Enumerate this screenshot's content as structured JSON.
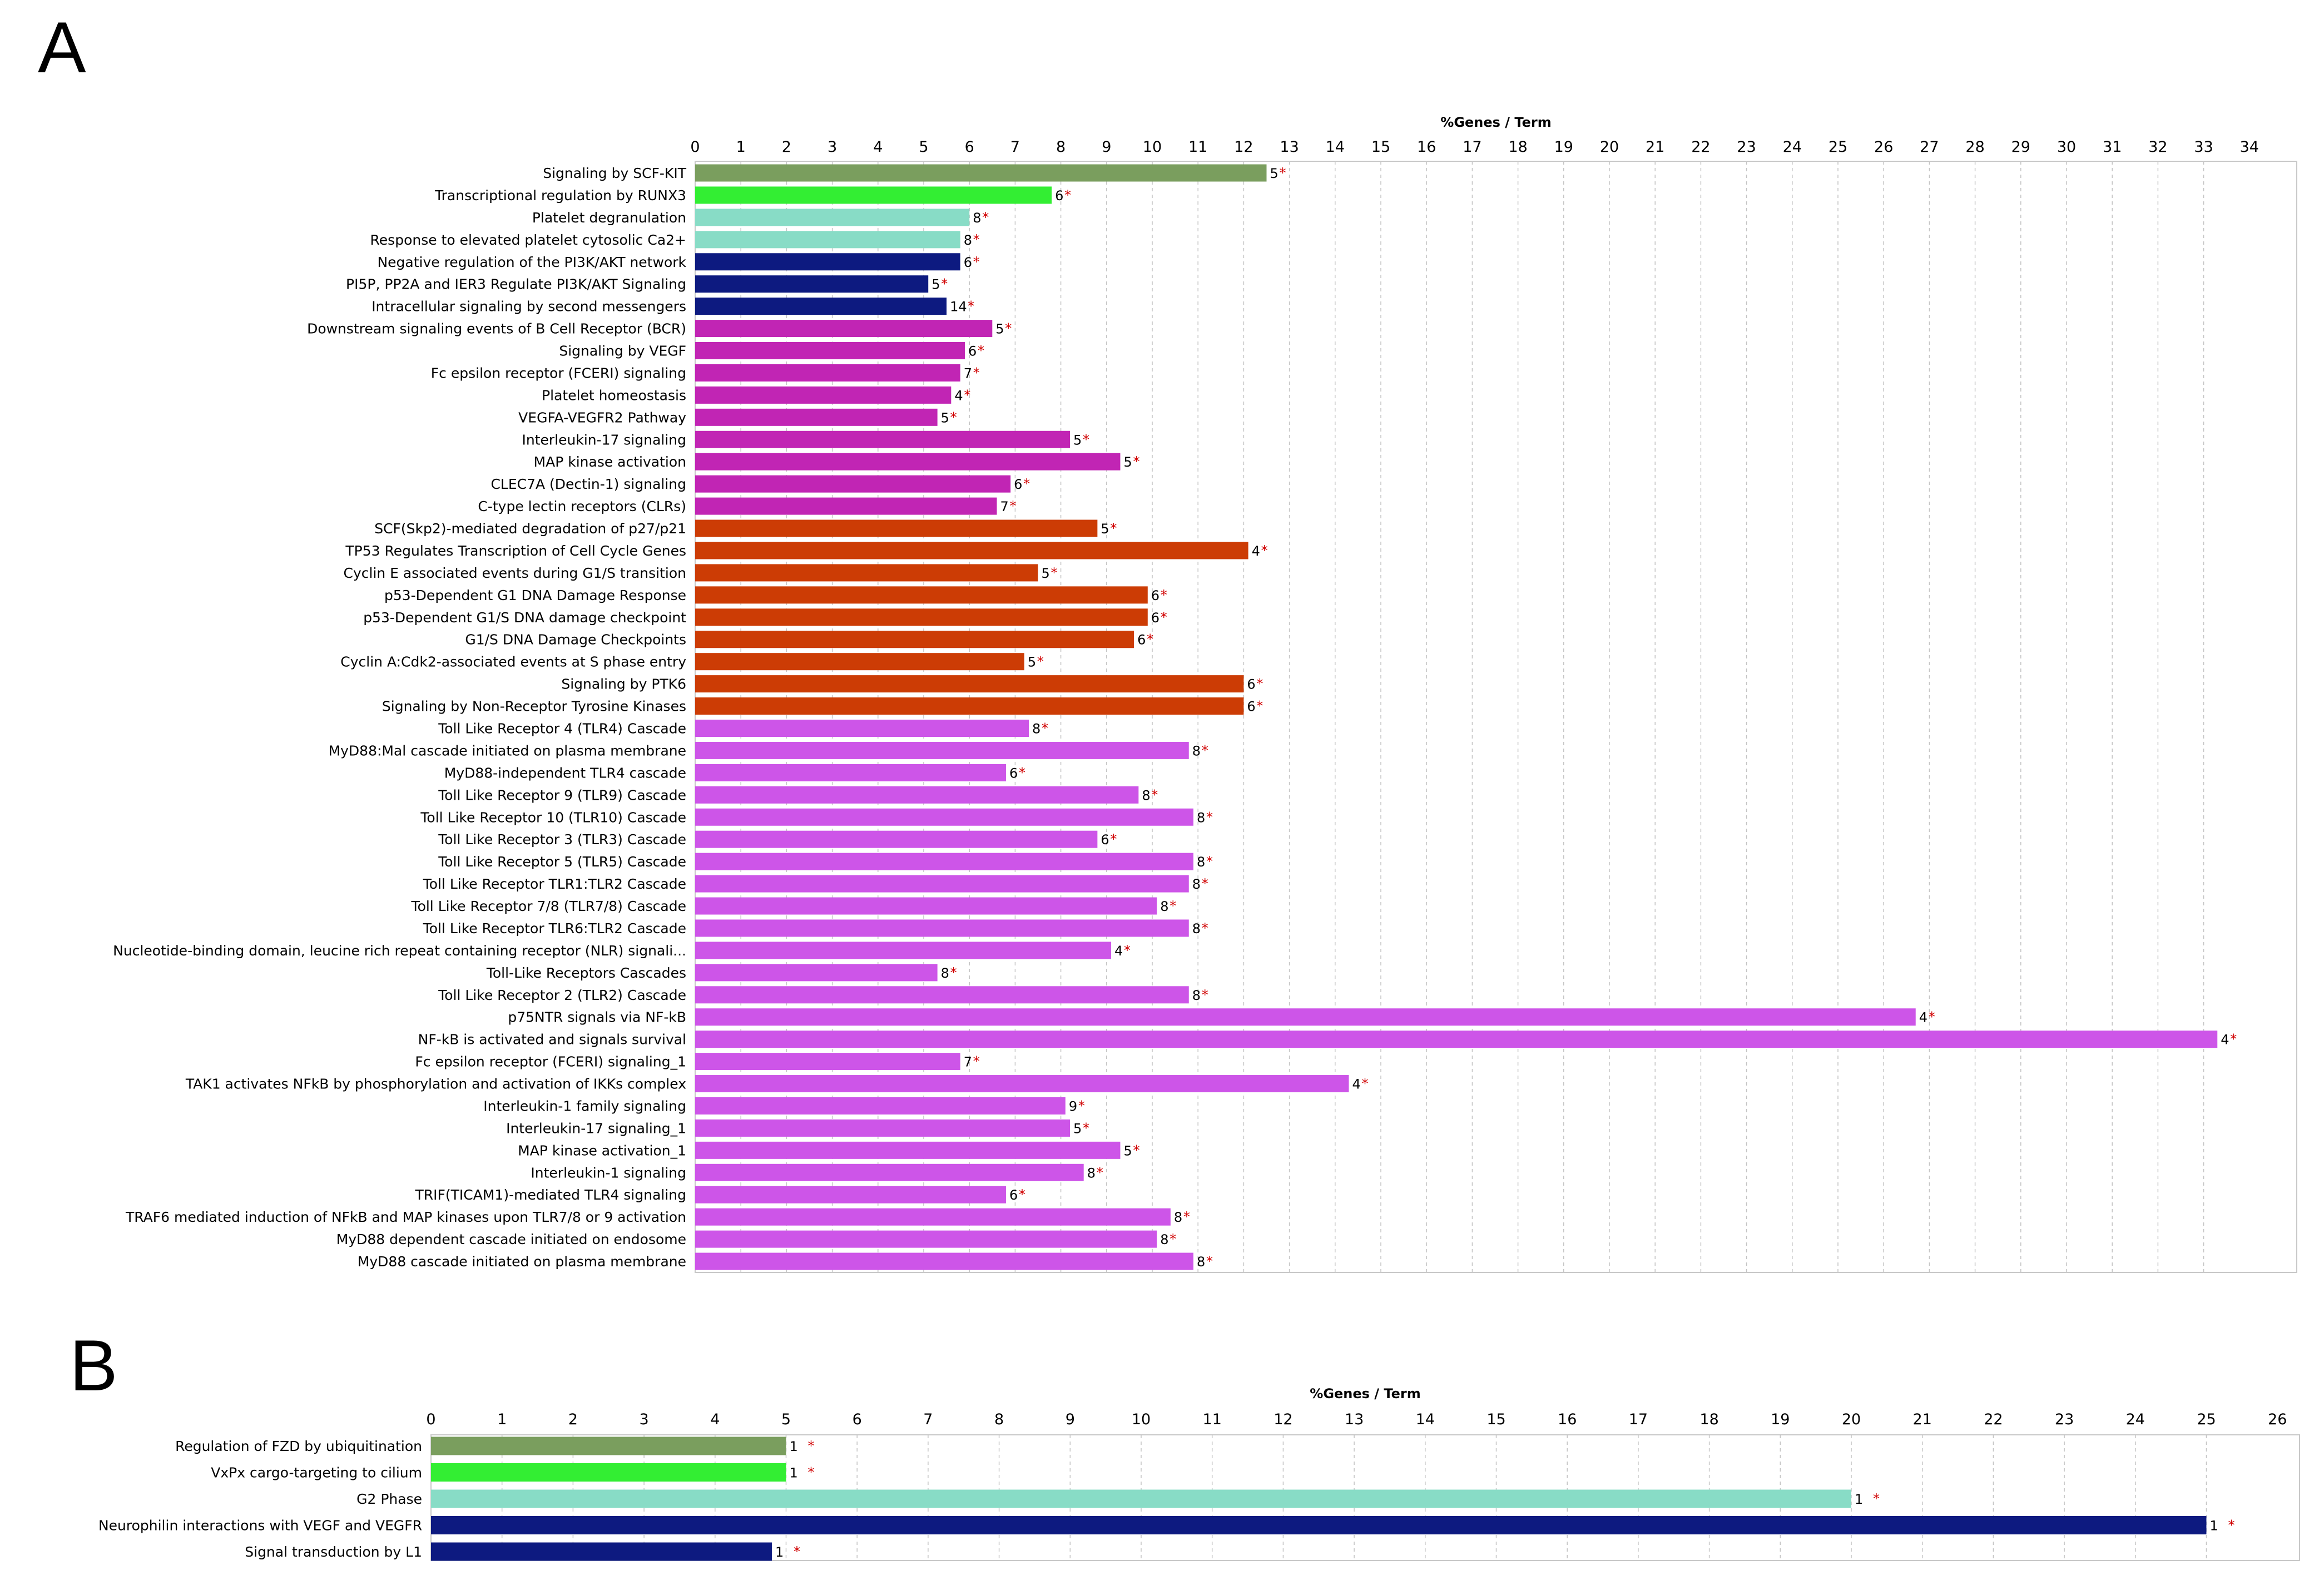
{
  "chart_data": [
    {
      "type": "bar",
      "panel": "A",
      "orientation": "horizontal",
      "title": "%Genes / Term",
      "xlim": [
        0,
        34
      ],
      "grid": "vertical-dashed",
      "significance_marker": "*",
      "ticks": [
        0,
        1,
        2,
        3,
        4,
        5,
        6,
        7,
        8,
        9,
        10,
        11,
        12,
        13,
        14,
        15,
        16,
        17,
        18,
        19,
        20,
        21,
        22,
        23,
        24,
        25,
        26,
        27,
        28,
        29,
        30,
        31,
        32,
        33,
        34
      ],
      "bars": [
        {
          "label": "Signaling by SCF-KIT",
          "value": 12.5,
          "count": "5",
          "color": "#7a9e5e"
        },
        {
          "label": "Transcriptional regulation by RUNX3",
          "value": 7.8,
          "count": "6",
          "color": "#33ee33"
        },
        {
          "label": "Platelet degranulation",
          "value": 6.0,
          "count": "8",
          "color": "#88dcc6"
        },
        {
          "label": "Response to elevated platelet cytosolic Ca2+",
          "value": 5.8,
          "count": "8",
          "color": "#88dcc6"
        },
        {
          "label": "Negative regulation of the PI3K/AKT network",
          "value": 5.8,
          "count": "6",
          "color": "#0d1a80"
        },
        {
          "label": "PI5P, PP2A and IER3 Regulate PI3K/AKT Signaling",
          "value": 5.1,
          "count": "5",
          "color": "#0d1a80"
        },
        {
          "label": "Intracellular signaling by second messengers",
          "value": 5.5,
          "count": "14",
          "color": "#0d1a80"
        },
        {
          "label": "Downstream signaling events of B Cell Receptor (BCR)",
          "value": 6.5,
          "count": "5",
          "color": "#c125b4"
        },
        {
          "label": "Signaling by VEGF",
          "value": 5.9,
          "count": "6",
          "color": "#c125b4"
        },
        {
          "label": "Fc epsilon receptor (FCERI) signaling",
          "value": 5.8,
          "count": "7",
          "color": "#c125b4"
        },
        {
          "label": "Platelet homeostasis",
          "value": 5.6,
          "count": "4",
          "color": "#c125b4"
        },
        {
          "label": "VEGFA-VEGFR2 Pathway",
          "value": 5.3,
          "count": "5",
          "color": "#c125b4"
        },
        {
          "label": "Interleukin-17 signaling",
          "value": 8.2,
          "count": "5",
          "color": "#c125b4"
        },
        {
          "label": "MAP kinase activation",
          "value": 9.3,
          "count": "5",
          "color": "#c125b4"
        },
        {
          "label": "CLEC7A (Dectin-1) signaling",
          "value": 6.9,
          "count": "6",
          "color": "#c125b4"
        },
        {
          "label": "C-type lectin receptors (CLRs)",
          "value": 6.6,
          "count": "7",
          "color": "#c125b4"
        },
        {
          "label": "SCF(Skp2)-mediated degradation of p27/p21",
          "value": 8.8,
          "count": "5",
          "color": "#cc3c05"
        },
        {
          "label": "TP53 Regulates Transcription of Cell Cycle Genes",
          "value": 12.1,
          "count": "4",
          "color": "#cc3c05"
        },
        {
          "label": "Cyclin E associated events during G1/S transition",
          "value": 7.5,
          "count": "5",
          "color": "#cc3c05"
        },
        {
          "label": "p53-Dependent G1 DNA Damage Response",
          "value": 9.9,
          "count": "6",
          "color": "#cc3c05"
        },
        {
          "label": "p53-Dependent G1/S DNA damage checkpoint",
          "value": 9.9,
          "count": "6",
          "color": "#cc3c05"
        },
        {
          "label": "G1/S DNA Damage Checkpoints",
          "value": 9.6,
          "count": "6",
          "color": "#cc3c05"
        },
        {
          "label": "Cyclin A:Cdk2-associated events at S phase entry",
          "value": 7.2,
          "count": "5",
          "color": "#cc3c05"
        },
        {
          "label": "Signaling by PTK6",
          "value": 12.0,
          "count": "6",
          "color": "#cc3c05"
        },
        {
          "label": "Signaling by Non-Receptor Tyrosine Kinases",
          "value": 12.0,
          "count": "6",
          "color": "#cc3c05"
        },
        {
          "label": "Toll Like Receptor 4 (TLR4) Cascade",
          "value": 7.3,
          "count": "8",
          "color": "#cd55e8"
        },
        {
          "label": "MyD88:Mal cascade initiated on plasma membrane",
          "value": 10.8,
          "count": "8",
          "color": "#cd55e8"
        },
        {
          "label": "MyD88-independent TLR4 cascade",
          "value": 6.8,
          "count": "6",
          "color": "#cd55e8"
        },
        {
          "label": "Toll Like Receptor 9 (TLR9) Cascade",
          "value": 9.7,
          "count": "8",
          "color": "#cd55e8"
        },
        {
          "label": "Toll Like Receptor 10 (TLR10) Cascade",
          "value": 10.9,
          "count": "8",
          "color": "#cd55e8"
        },
        {
          "label": "Toll Like Receptor 3 (TLR3) Cascade",
          "value": 8.8,
          "count": "6",
          "color": "#cd55e8"
        },
        {
          "label": "Toll Like Receptor 5 (TLR5) Cascade",
          "value": 10.9,
          "count": "8",
          "color": "#cd55e8"
        },
        {
          "label": "Toll Like Receptor TLR1:TLR2 Cascade",
          "value": 10.8,
          "count": "8",
          "color": "#cd55e8"
        },
        {
          "label": "Toll Like Receptor 7/8 (TLR7/8) Cascade",
          "value": 10.1,
          "count": "8",
          "color": "#cd55e8"
        },
        {
          "label": "Toll Like Receptor TLR6:TLR2 Cascade",
          "value": 10.8,
          "count": "8",
          "color": "#cd55e8"
        },
        {
          "label": "Nucleotide-binding domain, leucine rich repeat containing receptor (NLR) signali...",
          "value": 9.1,
          "count": "4",
          "color": "#cd55e8"
        },
        {
          "label": "Toll-Like Receptors Cascades",
          "value": 5.3,
          "count": "8",
          "color": "#cd55e8"
        },
        {
          "label": "Toll Like Receptor 2 (TLR2) Cascade",
          "value": 10.8,
          "count": "8",
          "color": "#cd55e8"
        },
        {
          "label": "p75NTR signals via NF-kB",
          "value": 26.7,
          "count": "4",
          "color": "#cd55e8"
        },
        {
          "label": "NF-kB is activated and signals survival",
          "value": 33.3,
          "count": "4",
          "color": "#cd55e8"
        },
        {
          "label": "Fc epsilon receptor (FCERI) signaling_1",
          "value": 5.8,
          "count": "7",
          "color": "#cd55e8"
        },
        {
          "label": "TAK1 activates NFkB by phosphorylation and activation of IKKs complex",
          "value": 14.3,
          "count": "4",
          "color": "#cd55e8"
        },
        {
          "label": "Interleukin-1 family signaling",
          "value": 8.1,
          "count": "9",
          "color": "#cd55e8"
        },
        {
          "label": "Interleukin-17 signaling_1",
          "value": 8.2,
          "count": "5",
          "color": "#cd55e8"
        },
        {
          "label": "MAP kinase activation_1",
          "value": 9.3,
          "count": "5",
          "color": "#cd55e8"
        },
        {
          "label": "Interleukin-1 signaling",
          "value": 8.5,
          "count": "8",
          "color": "#cd55e8"
        },
        {
          "label": "TRIF(TICAM1)-mediated TLR4 signaling",
          "value": 6.8,
          "count": "6",
          "color": "#cd55e8"
        },
        {
          "label": "TRAF6 mediated induction of NFkB and MAP kinases upon TLR7/8 or 9 activation",
          "value": 10.4,
          "count": "8",
          "color": "#cd55e8"
        },
        {
          "label": "MyD88 dependent cascade initiated on endosome",
          "value": 10.1,
          "count": "8",
          "color": "#cd55e8"
        },
        {
          "label": "MyD88 cascade initiated on plasma membrane",
          "value": 10.9,
          "count": "8",
          "color": "#cd55e8"
        }
      ]
    },
    {
      "type": "bar",
      "panel": "B",
      "orientation": "horizontal",
      "title": "%Genes / Term",
      "xlim": [
        0,
        26
      ],
      "grid": "vertical-dashed",
      "significance_marker": "*",
      "ticks": [
        0,
        1,
        2,
        3,
        4,
        5,
        6,
        7,
        8,
        9,
        10,
        11,
        12,
        13,
        14,
        15,
        16,
        17,
        18,
        19,
        20,
        21,
        22,
        23,
        24,
        25,
        26
      ],
      "bars": [
        {
          "label": "Regulation of FZD by ubiquitination",
          "value": 5.0,
          "count": "1",
          "color": "#7a9e5e"
        },
        {
          "label": "VxPx cargo-targeting to cilium",
          "value": 5.0,
          "count": "1",
          "color": "#33ee33"
        },
        {
          "label": "G2 Phase",
          "value": 20.0,
          "count": "1",
          "color": "#88dcc6"
        },
        {
          "label": "Neurophilin interactions with VEGF and VEGFR",
          "value": 25.0,
          "count": "1",
          "color": "#0d1a80"
        },
        {
          "label": "Signal transduction by L1",
          "value": 4.8,
          "count": "1",
          "color": "#0d1a80"
        }
      ]
    }
  ]
}
